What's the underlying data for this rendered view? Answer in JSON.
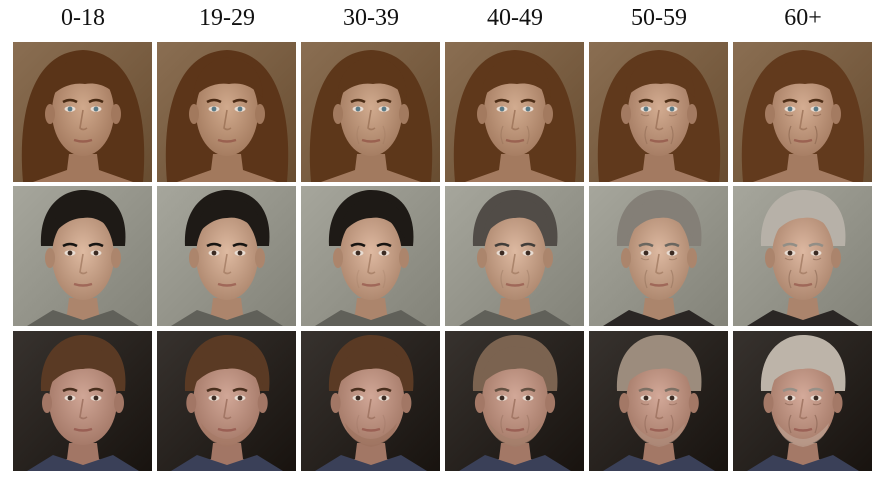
{
  "age_groups": [
    "0-18",
    "19-29",
    "30-39",
    "40-49",
    "50-59",
    "60+"
  ],
  "rows": [
    {
      "subject": "woman-brown-hair-bangs",
      "colors": {
        "background": "#7a5a3a",
        "hair": "#5a3418",
        "skin": "#c89a78"
      },
      "aging_levels": [
        0,
        1,
        2,
        3,
        4,
        5
      ]
    },
    {
      "subject": "man-dark-hair",
      "colors": {
        "background": "#9a9a8e",
        "hair": "#1e1a16",
        "skin": "#d8ae90"
      },
      "aging_levels": [
        0,
        1,
        2,
        3,
        4,
        5
      ]
    },
    {
      "subject": "man-brown-hair-beard",
      "colors": {
        "background": "#1c1612",
        "hair": "#5a3a24",
        "skin": "#c89684"
      },
      "aging_levels": [
        0,
        1,
        2,
        3,
        4,
        5
      ]
    }
  ]
}
